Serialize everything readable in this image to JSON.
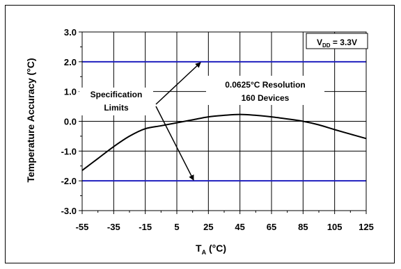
{
  "chart_data": {
    "type": "line",
    "xlabel_main": "T",
    "xlabel_sub": "A",
    "xlabel_unit": " (°C)",
    "ylabel": "Temperature Accuracy (°C)",
    "xlim": [
      -55,
      125
    ],
    "ylim": [
      -3.0,
      3.0
    ],
    "x_ticks": [
      "-55",
      "-35",
      "-15",
      "5",
      "25",
      "45",
      "65",
      "85",
      "105",
      "125"
    ],
    "y_ticks": [
      "3.0",
      "2.0",
      "1.0",
      "0.0",
      "-1.0",
      "-2.0",
      "-3.0"
    ],
    "grid": true,
    "series": [
      {
        "x": [
          -55,
          -45,
          -35,
          -25,
          -15,
          -5,
          5,
          15,
          25,
          35,
          45,
          55,
          65,
          75,
          85,
          95,
          105,
          115,
          125
        ],
        "y": [
          -1.65,
          -1.25,
          -0.85,
          -0.5,
          -0.25,
          -0.15,
          -0.05,
          0.05,
          0.15,
          0.2,
          0.23,
          0.2,
          0.15,
          0.08,
          0.0,
          -0.12,
          -0.28,
          -0.43,
          -0.58
        ],
        "color": "#000000"
      }
    ],
    "spec_limits": {
      "values": [
        2.0,
        -2.0
      ],
      "color": "#1f1fbf"
    },
    "annotations": {
      "vdd_main": "V",
      "vdd_sub": "DD",
      "vdd_rest": " = 3.3V",
      "resolution": "0.0625°C Resolution",
      "devices": "160 Devices",
      "spec_line1": "Specification",
      "spec_line2": "Limits"
    }
  }
}
